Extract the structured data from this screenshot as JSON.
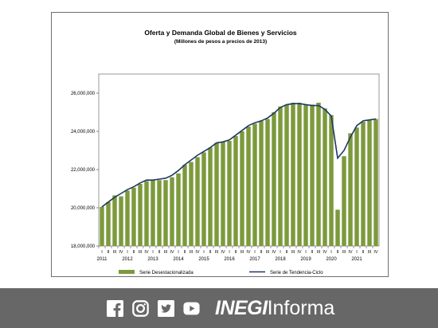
{
  "chart_data": {
    "type": "bar",
    "title": "Oferta y Demanda Global de Bienes y Servicios",
    "subtitle": "(Millones  de pesos a precios de 2013)",
    "ylim": [
      18000000,
      27000000
    ],
    "y_ticks": [
      18000000,
      20000000,
      22000000,
      24000000,
      26000000
    ],
    "y_tick_labels": [
      "18,000,000",
      "20,000,000",
      "22,000,000",
      "24,000,000",
      "26,000,000"
    ],
    "years": [
      "2011",
      "2012",
      "2013",
      "2014",
      "2015",
      "2016",
      "2017",
      "2018",
      "2019",
      "2020",
      "2021"
    ],
    "quarter_labels": [
      "I",
      "II",
      "III",
      "IV"
    ],
    "categories": [
      "2011-I",
      "2011-II",
      "2011-III",
      "2011-IV",
      "2012-I",
      "2012-II",
      "2012-III",
      "2012-IV",
      "2013-I",
      "2013-II",
      "2013-III",
      "2013-IV",
      "2014-I",
      "2014-II",
      "2014-III",
      "2014-IV",
      "2015-I",
      "2015-II",
      "2015-III",
      "2015-IV",
      "2016-I",
      "2016-II",
      "2016-III",
      "2016-IV",
      "2017-I",
      "2017-II",
      "2017-III",
      "2017-IV",
      "2018-I",
      "2018-II",
      "2018-III",
      "2018-IV",
      "2019-I",
      "2019-II",
      "2019-III",
      "2019-IV",
      "2020-I",
      "2020-II",
      "2020-III",
      "2020-IV",
      "2021-I",
      "2021-II",
      "2021-III",
      "2021-IV"
    ],
    "series": [
      {
        "name": "Serie Desestacionalizada",
        "kind": "bar",
        "color": "#7c9a3c",
        "values": [
          20050000,
          20300000,
          20650000,
          20600000,
          20900000,
          21050000,
          21250000,
          21400000,
          21450000,
          21450000,
          21450000,
          21600000,
          21800000,
          22250000,
          22400000,
          22650000,
          22900000,
          23150000,
          23400000,
          23450000,
          23500000,
          23750000,
          24000000,
          24250000,
          24400000,
          24550000,
          24650000,
          25000000,
          25300000,
          25400000,
          25500000,
          25500000,
          25400000,
          25400000,
          25500000,
          25200000,
          24850000,
          19900000,
          22700000,
          23900000,
          24200000,
          24500000,
          24600000,
          24650000
        ]
      },
      {
        "name": "Serie de Tendencia-Ciclo",
        "kind": "line",
        "color": "#1f3864",
        "values": [
          20050000,
          20300000,
          20550000,
          20750000,
          20950000,
          21100000,
          21300000,
          21450000,
          21450000,
          21500000,
          21550000,
          21700000,
          21950000,
          22250000,
          22500000,
          22750000,
          22950000,
          23150000,
          23400000,
          23450000,
          23550000,
          23800000,
          24050000,
          24300000,
          24450000,
          24550000,
          24700000,
          24950000,
          25250000,
          25400000,
          25450000,
          25450000,
          25400000,
          25350000,
          25350000,
          25150000,
          24800000,
          22600000,
          23000000,
          23700000,
          24300000,
          24550000,
          24600000,
          24650000
        ]
      }
    ],
    "legend_position": "bottom"
  },
  "footer": {
    "brand_bold": "INEGI",
    "brand_light": "Informa",
    "icons": [
      "facebook-icon",
      "instagram-icon",
      "twitter-icon",
      "youtube-icon"
    ]
  }
}
